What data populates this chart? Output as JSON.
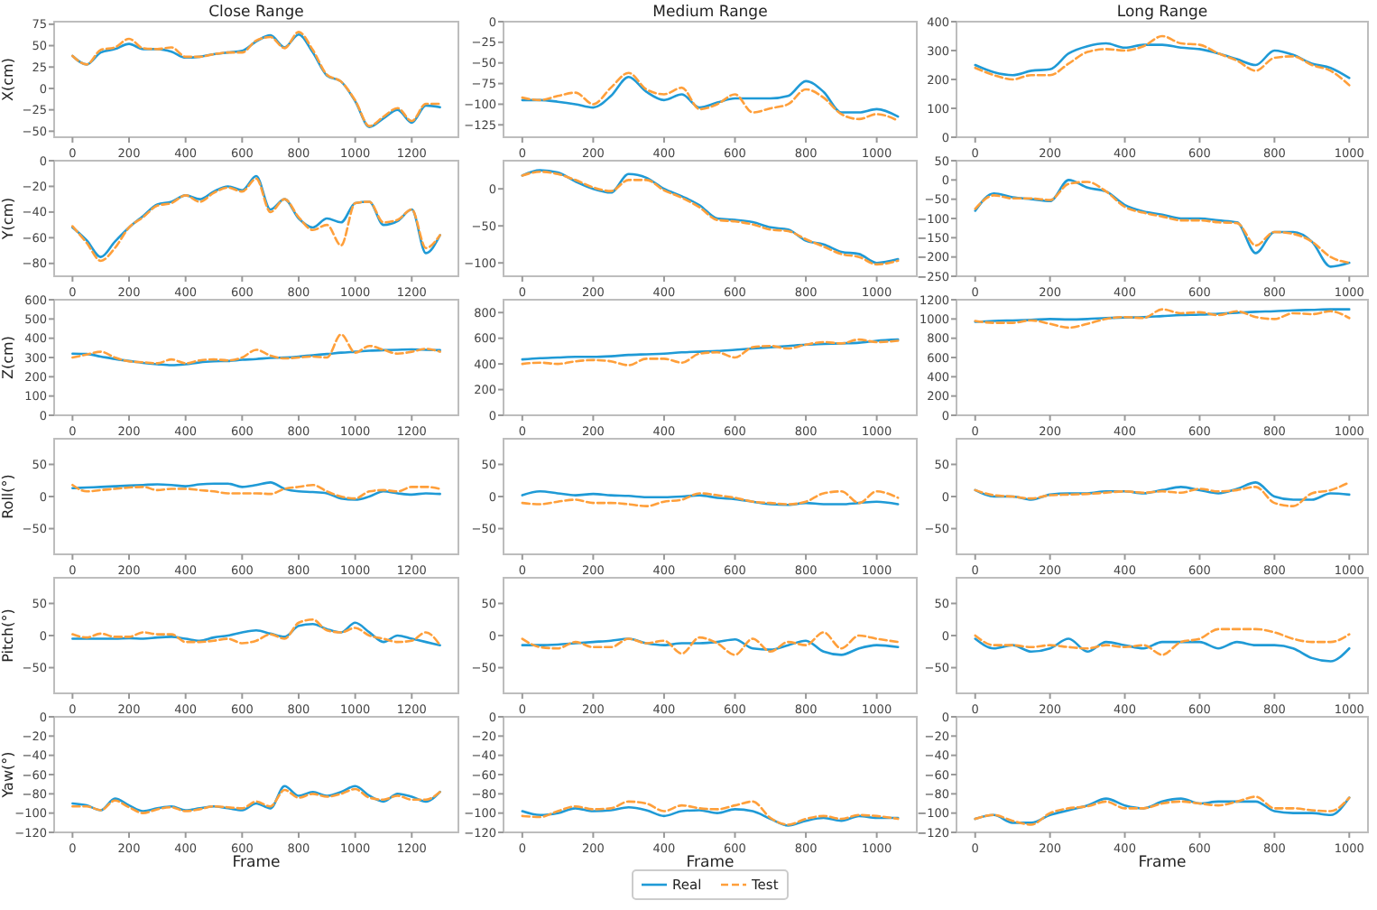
{
  "chart_data": [
    {
      "type": "line",
      "title": "Close Range",
      "ylabel": "X(cm)",
      "x": [
        0,
        50,
        100,
        150,
        200,
        250,
        300,
        350,
        400,
        450,
        500,
        550,
        600,
        650,
        700,
        750,
        800,
        850,
        900,
        950,
        1000,
        1050,
        1100,
        1150,
        1200,
        1250,
        1300
      ],
      "xlim": [
        -65,
        1365
      ],
      "xticks": [
        0,
        200,
        400,
        600,
        800,
        1000,
        1200
      ],
      "ylim": [
        -57,
        78
      ],
      "yticks": [
        -50,
        -25,
        0,
        25,
        50,
        75
      ],
      "series": [
        {
          "color": "#1f9ad6",
          "values": [
            38,
            28,
            42,
            46,
            52,
            46,
            46,
            43,
            36,
            37,
            40,
            42,
            44,
            55,
            62,
            48,
            63,
            42,
            15,
            8,
            -15,
            -45,
            -35,
            -25,
            -40,
            -20,
            -22
          ]
        },
        {
          "color": "#ff9f3a",
          "line_style": "dashed",
          "values": [
            38,
            28,
            45,
            48,
            58,
            47,
            46,
            48,
            37,
            37,
            40,
            42,
            42,
            56,
            60,
            47,
            66,
            45,
            16,
            8,
            -14,
            -44,
            -33,
            -23,
            -38,
            -18,
            -18
          ]
        }
      ]
    },
    {
      "type": "line",
      "title": "Medium Range",
      "x": [
        0,
        50,
        100,
        150,
        200,
        250,
        300,
        350,
        400,
        450,
        500,
        550,
        600,
        650,
        700,
        750,
        800,
        850,
        900,
        950,
        1000,
        1060
      ],
      "xlim": [
        -53,
        1113
      ],
      "xticks": [
        0,
        200,
        400,
        600,
        800,
        1000
      ],
      "ylim": [
        -140,
        0
      ],
      "yticks": [
        -125,
        -100,
        -75,
        -50,
        -25,
        0
      ],
      "series": [
        {
          "color": "#1f9ad6",
          "values": [
            -95,
            -95,
            -97,
            -100,
            -104,
            -90,
            -67,
            -85,
            -95,
            -88,
            -104,
            -98,
            -93,
            -93,
            -93,
            -90,
            -72,
            -85,
            -110,
            -110,
            -106,
            -115
          ]
        },
        {
          "color": "#ff9f3a",
          "line_style": "dashed",
          "values": [
            -92,
            -95,
            -90,
            -86,
            -100,
            -80,
            -62,
            -82,
            -88,
            -80,
            -106,
            -100,
            -88,
            -110,
            -105,
            -100,
            -82,
            -92,
            -112,
            -118,
            -112,
            -120
          ]
        }
      ]
    },
    {
      "type": "line",
      "title": "Long Range",
      "x": [
        0,
        50,
        100,
        150,
        200,
        250,
        300,
        350,
        400,
        450,
        500,
        550,
        600,
        650,
        700,
        750,
        800,
        850,
        900,
        950,
        1000
      ],
      "xlim": [
        -50,
        1050
      ],
      "xticks": [
        0,
        200,
        400,
        600,
        800,
        1000
      ],
      "ylim": [
        0,
        400
      ],
      "yticks": [
        0,
        100,
        200,
        300,
        400
      ],
      "series": [
        {
          "color": "#1f9ad6",
          "values": [
            250,
            225,
            215,
            230,
            235,
            290,
            315,
            325,
            310,
            320,
            320,
            310,
            305,
            290,
            270,
            250,
            300,
            285,
            255,
            240,
            205
          ]
        },
        {
          "color": "#ff9f3a",
          "line_style": "dashed",
          "values": [
            240,
            215,
            200,
            215,
            215,
            255,
            295,
            305,
            300,
            315,
            350,
            325,
            320,
            290,
            265,
            230,
            275,
            280,
            250,
            230,
            180
          ]
        }
      ]
    },
    {
      "type": "line",
      "ylabel": "Y(cm)",
      "x": [
        0,
        50,
        100,
        150,
        200,
        250,
        300,
        350,
        400,
        450,
        500,
        550,
        600,
        650,
        700,
        750,
        800,
        850,
        900,
        950,
        1000,
        1050,
        1100,
        1150,
        1200,
        1250,
        1300
      ],
      "xlim": [
        -65,
        1365
      ],
      "xticks": [
        0,
        200,
        400,
        600,
        800,
        1000,
        1200
      ],
      "ylim": [
        -90,
        0
      ],
      "yticks": [
        -80,
        -60,
        -40,
        -20,
        0
      ],
      "series": [
        {
          "color": "#1f9ad6",
          "values": [
            -52,
            -62,
            -75,
            -63,
            -52,
            -43,
            -34,
            -32,
            -27,
            -30,
            -24,
            -20,
            -23,
            -12,
            -38,
            -30,
            -45,
            -52,
            -45,
            -48,
            -33,
            -32,
            -50,
            -47,
            -38,
            -72,
            -58
          ]
        },
        {
          "color": "#ff9f3a",
          "line_style": "dashed",
          "values": [
            -51,
            -64,
            -78,
            -68,
            -52,
            -44,
            -35,
            -33,
            -27,
            -32,
            -25,
            -21,
            -24,
            -14,
            -40,
            -30,
            -44,
            -54,
            -50,
            -66,
            -33,
            -32,
            -48,
            -46,
            -38,
            -68,
            -58
          ]
        }
      ]
    },
    {
      "type": "line",
      "x": [
        0,
        50,
        100,
        150,
        200,
        250,
        300,
        350,
        400,
        450,
        500,
        550,
        600,
        650,
        700,
        750,
        800,
        850,
        900,
        950,
        1000,
        1060
      ],
      "xlim": [
        -53,
        1113
      ],
      "xticks": [
        0,
        200,
        400,
        600,
        800,
        1000
      ],
      "ylim": [
        -118,
        38
      ],
      "yticks": [
        -100,
        -50,
        0
      ],
      "series": [
        {
          "color": "#1f9ad6",
          "values": [
            18,
            25,
            22,
            10,
            0,
            -5,
            20,
            15,
            0,
            -10,
            -22,
            -40,
            -42,
            -45,
            -52,
            -55,
            -70,
            -75,
            -85,
            -88,
            -100,
            -95
          ]
        },
        {
          "color": "#ff9f3a",
          "line_style": "dashed",
          "values": [
            18,
            23,
            20,
            12,
            2,
            -3,
            12,
            12,
            -2,
            -12,
            -25,
            -42,
            -44,
            -48,
            -55,
            -57,
            -68,
            -78,
            -88,
            -92,
            -102,
            -97
          ]
        }
      ]
    },
    {
      "type": "line",
      "x": [
        0,
        50,
        100,
        150,
        200,
        250,
        300,
        350,
        400,
        450,
        500,
        550,
        600,
        650,
        700,
        750,
        800,
        850,
        900,
        950,
        1000
      ],
      "xlim": [
        -50,
        1050
      ],
      "xticks": [
        0,
        200,
        400,
        600,
        800,
        1000
      ],
      "ylim": [
        -250,
        50
      ],
      "yticks": [
        -250,
        -200,
        -150,
        -100,
        -50,
        0,
        50
      ],
      "series": [
        {
          "color": "#1f9ad6",
          "values": [
            -80,
            -35,
            -45,
            -50,
            -55,
            0,
            -20,
            -30,
            -65,
            -82,
            -90,
            -100,
            -100,
            -105,
            -110,
            -190,
            -135,
            -135,
            -160,
            -225,
            -215
          ]
        },
        {
          "color": "#ff9f3a",
          "line_style": "dashed",
          "values": [
            -75,
            -40,
            -48,
            -48,
            -52,
            -10,
            -5,
            -30,
            -70,
            -85,
            -95,
            -105,
            -105,
            -110,
            -112,
            -170,
            -135,
            -140,
            -160,
            -200,
            -215
          ]
        }
      ]
    },
    {
      "type": "line",
      "ylabel": "Z(cm)",
      "x": [
        0,
        50,
        100,
        150,
        200,
        250,
        300,
        350,
        400,
        450,
        500,
        550,
        600,
        650,
        700,
        750,
        800,
        850,
        900,
        950,
        1000,
        1050,
        1100,
        1150,
        1200,
        1250,
        1300
      ],
      "xlim": [
        -65,
        1365
      ],
      "xticks": [
        0,
        200,
        400,
        600,
        800,
        1000,
        1200
      ],
      "ylim": [
        0,
        600
      ],
      "yticks": [
        0,
        100,
        200,
        300,
        400,
        500,
        600
      ],
      "series": [
        {
          "color": "#1f9ad6",
          "values": [
            320,
            318,
            305,
            292,
            282,
            272,
            265,
            260,
            265,
            275,
            280,
            282,
            288,
            292,
            298,
            300,
            305,
            312,
            318,
            325,
            330,
            335,
            338,
            340,
            342,
            340,
            338
          ]
        },
        {
          "color": "#ff9f3a",
          "line_style": "dashed",
          "values": [
            300,
            315,
            330,
            300,
            280,
            275,
            270,
            290,
            270,
            285,
            290,
            285,
            300,
            340,
            310,
            295,
            300,
            305,
            300,
            420,
            325,
            360,
            340,
            320,
            330,
            345,
            330
          ]
        }
      ]
    },
    {
      "type": "line",
      "x": [
        0,
        50,
        100,
        150,
        200,
        250,
        300,
        350,
        400,
        450,
        500,
        550,
        600,
        650,
        700,
        750,
        800,
        850,
        900,
        950,
        1000,
        1060
      ],
      "xlim": [
        -53,
        1113
      ],
      "xticks": [
        0,
        200,
        400,
        600,
        800,
        1000
      ],
      "ylim": [
        0,
        900
      ],
      "yticks": [
        0,
        200,
        400,
        600,
        800
      ],
      "series": [
        {
          "color": "#1f9ad6",
          "values": [
            435,
            445,
            450,
            455,
            455,
            460,
            470,
            475,
            480,
            490,
            495,
            500,
            510,
            520,
            530,
            540,
            550,
            555,
            560,
            565,
            580,
            590
          ]
        },
        {
          "color": "#ff9f3a",
          "line_style": "dashed",
          "values": [
            400,
            410,
            400,
            420,
            430,
            420,
            390,
            440,
            440,
            410,
            480,
            490,
            450,
            530,
            540,
            520,
            550,
            570,
            560,
            590,
            570,
            580
          ]
        }
      ]
    },
    {
      "type": "line",
      "x": [
        0,
        50,
        100,
        150,
        200,
        250,
        300,
        350,
        400,
        450,
        500,
        550,
        600,
        650,
        700,
        750,
        800,
        850,
        900,
        950,
        1000
      ],
      "xlim": [
        -50,
        1050
      ],
      "xticks": [
        0,
        200,
        400,
        600,
        800,
        1000
      ],
      "ylim": [
        0,
        1200
      ],
      "yticks": [
        0,
        200,
        400,
        600,
        800,
        1000,
        1200
      ],
      "series": [
        {
          "color": "#1f9ad6",
          "values": [
            970,
            980,
            985,
            990,
            1000,
            995,
            1000,
            1010,
            1015,
            1020,
            1030,
            1040,
            1045,
            1055,
            1065,
            1075,
            1080,
            1090,
            1095,
            1100,
            1100
          ]
        },
        {
          "color": "#ff9f3a",
          "line_style": "dashed",
          "values": [
            980,
            960,
            960,
            985,
            950,
            910,
            950,
            1000,
            1020,
            1010,
            1100,
            1060,
            1070,
            1040,
            1080,
            1020,
            1000,
            1060,
            1050,
            1080,
            1010
          ]
        }
      ]
    },
    {
      "type": "line",
      "ylabel": "Roll(°)",
      "x": [
        0,
        50,
        100,
        150,
        200,
        250,
        300,
        350,
        400,
        450,
        500,
        550,
        600,
        650,
        700,
        750,
        800,
        850,
        900,
        950,
        1000,
        1050,
        1100,
        1150,
        1200,
        1250,
        1300
      ],
      "xlim": [
        -65,
        1365
      ],
      "xticks": [
        0,
        200,
        400,
        600,
        800,
        1000,
        1200
      ],
      "ylim": [
        -90,
        90
      ],
      "yticks": [
        -50,
        0,
        50
      ],
      "series": [
        {
          "color": "#1f9ad6",
          "values": [
            13,
            14,
            15,
            16,
            17,
            18,
            19,
            18,
            16,
            19,
            20,
            20,
            15,
            18,
            22,
            12,
            8,
            7,
            5,
            -3,
            -5,
            0,
            8,
            5,
            3,
            5,
            4
          ]
        },
        {
          "color": "#ff9f3a",
          "line_style": "dashed",
          "values": [
            18,
            8,
            10,
            12,
            14,
            15,
            10,
            12,
            12,
            10,
            8,
            5,
            5,
            5,
            4,
            12,
            15,
            18,
            8,
            0,
            -3,
            8,
            10,
            8,
            15,
            15,
            12
          ]
        }
      ]
    },
    {
      "type": "line",
      "x": [
        0,
        50,
        100,
        150,
        200,
        250,
        300,
        350,
        400,
        450,
        500,
        550,
        600,
        650,
        700,
        750,
        800,
        850,
        900,
        950,
        1000,
        1060
      ],
      "xlim": [
        -53,
        1113
      ],
      "xticks": [
        0,
        200,
        400,
        600,
        800,
        1000
      ],
      "ylim": [
        -90,
        90
      ],
      "yticks": [
        -50,
        0,
        50
      ],
      "series": [
        {
          "color": "#1f9ad6",
          "values": [
            2,
            8,
            5,
            2,
            4,
            2,
            1,
            -1,
            -1,
            0,
            2,
            -2,
            -4,
            -8,
            -12,
            -13,
            -10,
            -12,
            -12,
            -10,
            -8,
            -12
          ]
        },
        {
          "color": "#ff9f3a",
          "line_style": "dashed",
          "values": [
            -10,
            -12,
            -8,
            -5,
            -10,
            -10,
            -12,
            -15,
            -8,
            -5,
            5,
            2,
            -2,
            -8,
            -10,
            -12,
            -8,
            5,
            8,
            -10,
            8,
            -2
          ]
        }
      ]
    },
    {
      "type": "line",
      "x": [
        0,
        50,
        100,
        150,
        200,
        250,
        300,
        350,
        400,
        450,
        500,
        550,
        600,
        650,
        700,
        750,
        800,
        850,
        900,
        950,
        1000
      ],
      "xlim": [
        -50,
        1050
      ],
      "xticks": [
        0,
        200,
        400,
        600,
        800,
        1000
      ],
      "ylim": [
        -90,
        90
      ],
      "yticks": [
        -50,
        0,
        50
      ],
      "series": [
        {
          "color": "#1f9ad6",
          "values": [
            10,
            0,
            0,
            -5,
            3,
            5,
            5,
            8,
            8,
            5,
            10,
            15,
            10,
            5,
            12,
            22,
            0,
            -5,
            -5,
            5,
            3
          ]
        },
        {
          "color": "#ff9f3a",
          "line_style": "dashed",
          "values": [
            10,
            2,
            0,
            -3,
            2,
            3,
            4,
            6,
            8,
            6,
            8,
            6,
            12,
            8,
            10,
            15,
            -10,
            -15,
            5,
            10,
            22
          ]
        }
      ]
    },
    {
      "type": "line",
      "ylabel": "Pitch(°)",
      "x": [
        0,
        50,
        100,
        150,
        200,
        250,
        300,
        350,
        400,
        450,
        500,
        550,
        600,
        650,
        700,
        750,
        800,
        850,
        900,
        950,
        1000,
        1050,
        1100,
        1150,
        1200,
        1250,
        1300
      ],
      "xlim": [
        -65,
        1365
      ],
      "xticks": [
        0,
        200,
        400,
        600,
        800,
        1000,
        1200
      ],
      "ylim": [
        -90,
        90
      ],
      "yticks": [
        -50,
        0,
        50
      ],
      "series": [
        {
          "color": "#1f9ad6",
          "values": [
            -5,
            -5,
            -5,
            -5,
            -4,
            -5,
            -3,
            -2,
            -5,
            -8,
            -3,
            0,
            5,
            8,
            3,
            -2,
            15,
            18,
            10,
            5,
            20,
            5,
            -10,
            0,
            -5,
            -10,
            -15
          ]
        },
        {
          "color": "#ff9f3a",
          "line_style": "dashed",
          "values": [
            2,
            -3,
            3,
            -2,
            -2,
            5,
            2,
            2,
            -10,
            -10,
            -8,
            -5,
            -12,
            -8,
            2,
            -5,
            20,
            25,
            8,
            5,
            12,
            0,
            -5,
            -10,
            -8,
            5,
            -15
          ]
        }
      ]
    },
    {
      "type": "line",
      "x": [
        0,
        50,
        100,
        150,
        200,
        250,
        300,
        350,
        400,
        450,
        500,
        550,
        600,
        650,
        700,
        750,
        800,
        850,
        900,
        950,
        1000,
        1060
      ],
      "xlim": [
        -53,
        1113
      ],
      "xticks": [
        0,
        200,
        400,
        600,
        800,
        1000
      ],
      "ylim": [
        -90,
        90
      ],
      "yticks": [
        -50,
        0,
        50
      ],
      "series": [
        {
          "color": "#1f9ad6",
          "values": [
            -15,
            -15,
            -14,
            -12,
            -10,
            -8,
            -5,
            -12,
            -15,
            -12,
            -12,
            -10,
            -6,
            -20,
            -22,
            -15,
            -8,
            -25,
            -30,
            -20,
            -15,
            -18
          ]
        },
        {
          "color": "#ff9f3a",
          "line_style": "dashed",
          "values": [
            -5,
            -18,
            -20,
            -10,
            -18,
            -18,
            -5,
            -12,
            -8,
            -28,
            -3,
            -12,
            -30,
            -5,
            -25,
            -10,
            -15,
            5,
            -20,
            0,
            -5,
            -10
          ]
        }
      ]
    },
    {
      "type": "line",
      "x": [
        0,
        50,
        100,
        150,
        200,
        250,
        300,
        350,
        400,
        450,
        500,
        550,
        600,
        650,
        700,
        750,
        800,
        850,
        900,
        950,
        1000
      ],
      "xlim": [
        -50,
        1050
      ],
      "xticks": [
        0,
        200,
        400,
        600,
        800,
        1000
      ],
      "ylim": [
        -90,
        90
      ],
      "yticks": [
        -50,
        0,
        50
      ],
      "series": [
        {
          "color": "#1f9ad6",
          "values": [
            -5,
            -20,
            -15,
            -25,
            -20,
            -5,
            -25,
            -10,
            -15,
            -20,
            -10,
            -10,
            -10,
            -20,
            -10,
            -15,
            -15,
            -20,
            -35,
            -40,
            -20
          ]
        },
        {
          "color": "#ff9f3a",
          "line_style": "dashed",
          "values": [
            0,
            -15,
            -15,
            -18,
            -15,
            -18,
            -20,
            -15,
            -18,
            -15,
            -30,
            -10,
            -5,
            10,
            10,
            10,
            5,
            -5,
            -10,
            -10,
            2
          ]
        }
      ]
    },
    {
      "type": "line",
      "ylabel": "Yaw(°)",
      "xlabel": "Frame",
      "x": [
        0,
        50,
        100,
        150,
        200,
        250,
        300,
        350,
        400,
        450,
        500,
        550,
        600,
        650,
        700,
        750,
        800,
        850,
        900,
        950,
        1000,
        1050,
        1100,
        1150,
        1200,
        1250,
        1300
      ],
      "xlim": [
        -65,
        1365
      ],
      "xticks": [
        0,
        200,
        400,
        600,
        800,
        1000,
        1200
      ],
      "ylim": [
        -120,
        0
      ],
      "yticks": [
        -120,
        -100,
        -80,
        -60,
        -40,
        -20,
        0
      ],
      "series": [
        {
          "color": "#1f9ad6",
          "values": [
            -90,
            -92,
            -97,
            -85,
            -92,
            -98,
            -95,
            -93,
            -97,
            -95,
            -93,
            -95,
            -97,
            -90,
            -95,
            -72,
            -82,
            -78,
            -82,
            -78,
            -72,
            -82,
            -88,
            -80,
            -83,
            -88,
            -78
          ]
        },
        {
          "color": "#ff9f3a",
          "line_style": "dashed",
          "values": [
            -93,
            -93,
            -97,
            -87,
            -94,
            -100,
            -96,
            -94,
            -98,
            -96,
            -93,
            -94,
            -95,
            -88,
            -93,
            -76,
            -84,
            -80,
            -83,
            -80,
            -75,
            -84,
            -86,
            -82,
            -86,
            -86,
            -78
          ]
        }
      ]
    },
    {
      "type": "line",
      "xlabel": "Frame",
      "legend": "bottom",
      "x": [
        0,
        50,
        100,
        150,
        200,
        250,
        300,
        350,
        400,
        450,
        500,
        550,
        600,
        650,
        700,
        750,
        800,
        850,
        900,
        950,
        1000,
        1060
      ],
      "xlim": [
        -53,
        1113
      ],
      "xticks": [
        0,
        200,
        400,
        600,
        800,
        1000
      ],
      "ylim": [
        -120,
        0
      ],
      "yticks": [
        -120,
        -100,
        -80,
        -60,
        -40,
        -20,
        0
      ],
      "series": [
        {
          "name": "Real",
          "color": "#1f9ad6",
          "values": [
            -98,
            -102,
            -100,
            -95,
            -98,
            -97,
            -94,
            -97,
            -103,
            -98,
            -97,
            -100,
            -96,
            -98,
            -106,
            -113,
            -108,
            -105,
            -108,
            -103,
            -105,
            -105
          ]
        },
        {
          "name": "Test",
          "color": "#ff9f3a",
          "line_style": "dashed",
          "values": [
            -103,
            -104,
            -98,
            -93,
            -96,
            -95,
            -88,
            -90,
            -98,
            -92,
            -95,
            -96,
            -92,
            -88,
            -105,
            -112,
            -106,
            -103,
            -106,
            -102,
            -103,
            -106
          ]
        }
      ]
    },
    {
      "type": "line",
      "xlabel": "Frame",
      "x": [
        0,
        50,
        100,
        150,
        200,
        250,
        300,
        350,
        400,
        450,
        500,
        550,
        600,
        650,
        700,
        750,
        800,
        850,
        900,
        950,
        1000
      ],
      "xlim": [
        -50,
        1050
      ],
      "xticks": [
        0,
        200,
        400,
        600,
        800,
        1000
      ],
      "ylim": [
        -120,
        0
      ],
      "yticks": [
        -120,
        -100,
        -80,
        -60,
        -40,
        -20,
        0
      ],
      "series": [
        {
          "color": "#1f9ad6",
          "values": [
            -106,
            -102,
            -110,
            -110,
            -102,
            -97,
            -92,
            -85,
            -92,
            -95,
            -88,
            -85,
            -90,
            -88,
            -88,
            -88,
            -98,
            -100,
            -100,
            -102,
            -84
          ]
        },
        {
          "color": "#ff9f3a",
          "line_style": "dashed",
          "values": [
            -106,
            -102,
            -108,
            -112,
            -100,
            -95,
            -93,
            -88,
            -95,
            -95,
            -90,
            -88,
            -90,
            -92,
            -88,
            -83,
            -95,
            -95,
            -97,
            -98,
            -84
          ]
        }
      ]
    }
  ]
}
